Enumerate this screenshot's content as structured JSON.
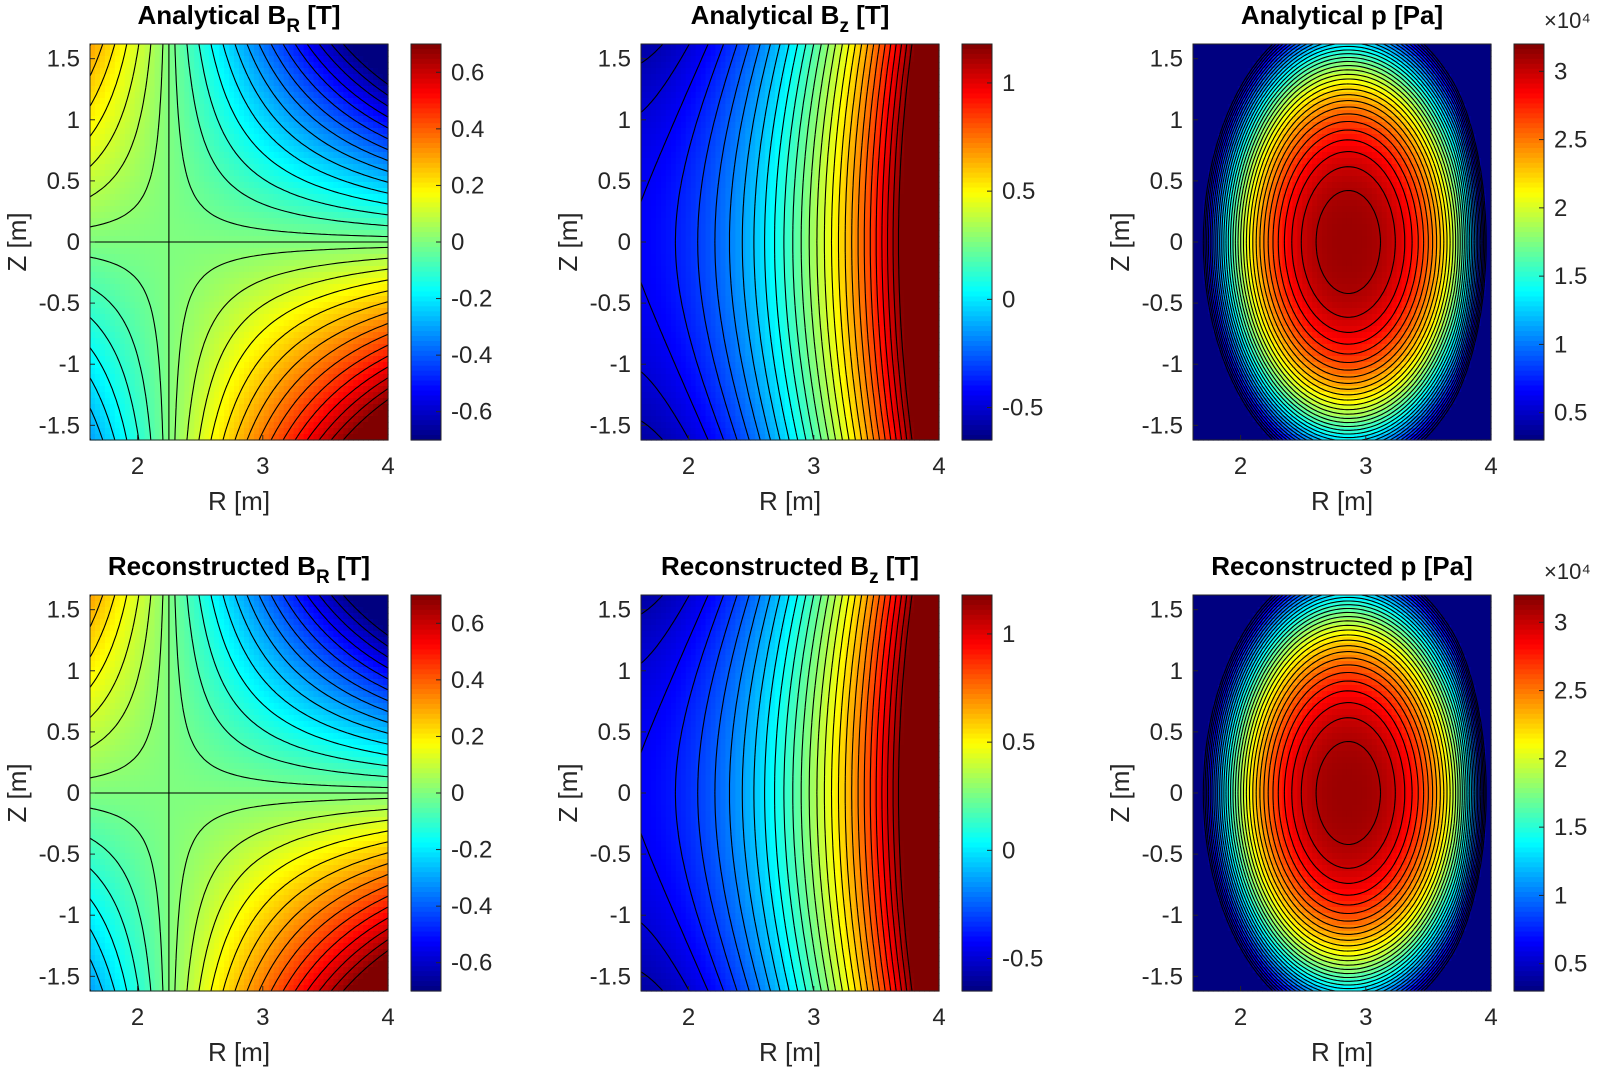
{
  "chart_data": [
    {
      "type": "heatmap",
      "id": "analytical-br",
      "title_main": "Analytical B",
      "title_sub": "R",
      "title_unit": " [T]",
      "xlabel": "R [m]",
      "ylabel": "Z [m]",
      "xlim": [
        1.62,
        4.0
      ],
      "ylim": [
        -1.62,
        1.62
      ],
      "xticks": [
        "2",
        "3",
        "4"
      ],
      "yticks": [
        "-1.5",
        "-1",
        "-0.5",
        "0",
        "0.5",
        "1",
        "1.5"
      ],
      "clim": [
        -0.7,
        0.7
      ],
      "cticks": [
        "-0.6",
        "-0.4",
        "-0.2",
        "0",
        "0.2",
        "0.4",
        "0.6"
      ],
      "colormap": "jet",
      "field": "BR",
      "colorbar_exponent": ""
    },
    {
      "type": "heatmap",
      "id": "analytical-bz",
      "title_main": "Analytical B",
      "title_sub": "z",
      "title_unit": " [T]",
      "xlabel": "R [m]",
      "ylabel": "Z [m]",
      "xlim": [
        1.62,
        4.0
      ],
      "ylim": [
        -1.62,
        1.62
      ],
      "xticks": [
        "2",
        "3",
        "4"
      ],
      "yticks": [
        "-1.5",
        "-1",
        "-0.5",
        "0",
        "0.5",
        "1",
        "1.5"
      ],
      "clim": [
        -0.65,
        1.18
      ],
      "cticks": [
        "-0.5",
        "0",
        "0.5",
        "1"
      ],
      "colormap": "jet",
      "field": "BZ",
      "colorbar_exponent": ""
    },
    {
      "type": "heatmap",
      "id": "analytical-p",
      "title_main": "Analytical p [Pa]",
      "title_sub": "",
      "title_unit": "",
      "xlabel": "R [m]",
      "ylabel": "Z [m]",
      "xlim": [
        1.62,
        4.0
      ],
      "ylim": [
        -1.62,
        1.62
      ],
      "xticks": [
        "2",
        "3",
        "4"
      ],
      "yticks": [
        "-1.5",
        "-1",
        "-0.5",
        "0",
        "0.5",
        "1",
        "1.5"
      ],
      "clim": [
        0.3,
        3.2
      ],
      "cticks": [
        "0.5",
        "1",
        "1.5",
        "2",
        "2.5",
        "3"
      ],
      "colormap": "jet",
      "field": "P",
      "colorbar_exponent": "×10⁴"
    },
    {
      "type": "heatmap",
      "id": "reconstructed-br",
      "title_main": "Reconstructed B",
      "title_sub": "R",
      "title_unit": " [T]",
      "xlabel": "R [m]",
      "ylabel": "Z [m]",
      "xlim": [
        1.62,
        4.0
      ],
      "ylim": [
        -1.62,
        1.62
      ],
      "xticks": [
        "2",
        "3",
        "4"
      ],
      "yticks": [
        "-1.5",
        "-1",
        "-0.5",
        "0",
        "0.5",
        "1",
        "1.5"
      ],
      "clim": [
        -0.7,
        0.7
      ],
      "cticks": [
        "-0.6",
        "-0.4",
        "-0.2",
        "0",
        "0.2",
        "0.4",
        "0.6"
      ],
      "colormap": "jet",
      "field": "BR",
      "colorbar_exponent": ""
    },
    {
      "type": "heatmap",
      "id": "reconstructed-bz",
      "title_main": "Reconstructed B",
      "title_sub": "z",
      "title_unit": " [T]",
      "xlabel": "R [m]",
      "ylabel": "Z [m]",
      "xlim": [
        1.62,
        4.0
      ],
      "ylim": [
        -1.62,
        1.62
      ],
      "xticks": [
        "2",
        "3",
        "4"
      ],
      "yticks": [
        "-1.5",
        "-1",
        "-0.5",
        "0",
        "0.5",
        "1",
        "1.5"
      ],
      "clim": [
        -0.65,
        1.18
      ],
      "cticks": [
        "-0.5",
        "0",
        "0.5",
        "1"
      ],
      "colormap": "jet",
      "field": "BZ",
      "colorbar_exponent": ""
    },
    {
      "type": "heatmap",
      "id": "reconstructed-p",
      "title_main": "Reconstructed p [Pa]",
      "title_sub": "",
      "title_unit": "",
      "xlabel": "R [m]",
      "ylabel": "Z [m]",
      "xlim": [
        1.62,
        4.0
      ],
      "ylim": [
        -1.62,
        1.62
      ],
      "xticks": [
        "2",
        "3",
        "4"
      ],
      "yticks": [
        "-1.5",
        "-1",
        "-0.5",
        "0",
        "0.5",
        "1",
        "1.5"
      ],
      "clim": [
        0.3,
        3.2
      ],
      "cticks": [
        "0.5",
        "1",
        "1.5",
        "2",
        "2.5",
        "3"
      ],
      "colormap": "jet",
      "field": "P",
      "colorbar_exponent": "×10⁴"
    }
  ]
}
